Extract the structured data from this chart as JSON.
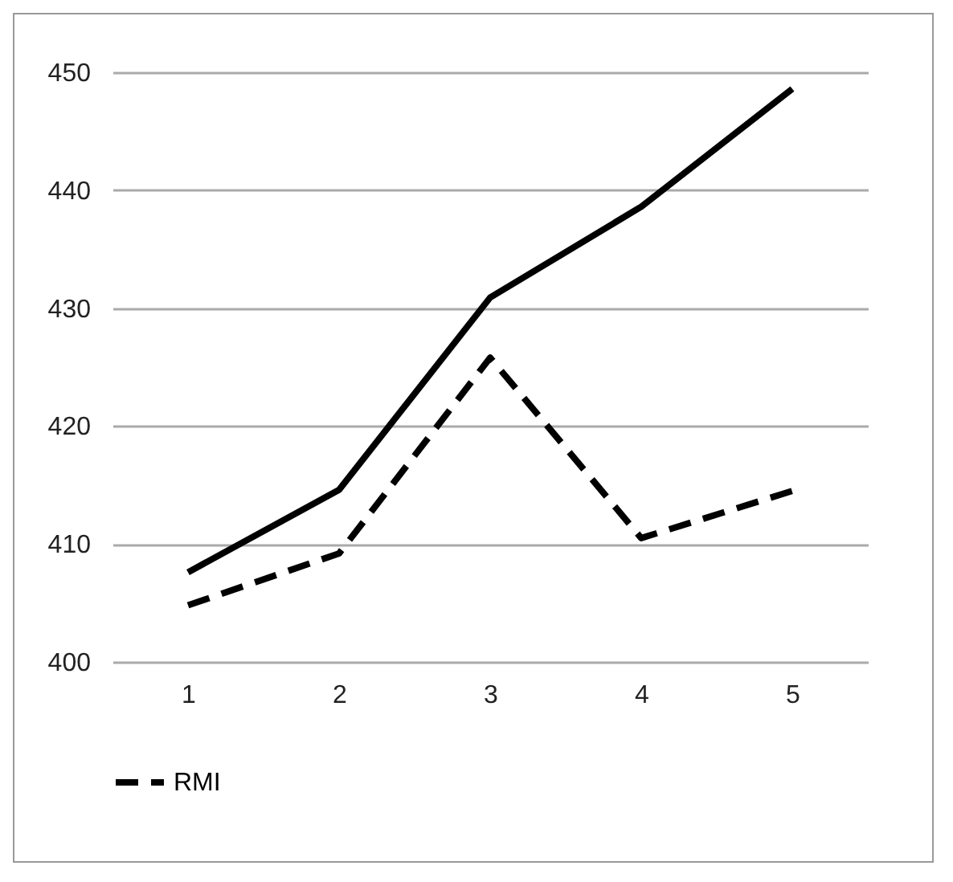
{
  "chart_data": {
    "type": "line",
    "categories": [
      "1",
      "2",
      "3",
      "4",
      "5"
    ],
    "series": [
      {
        "name": "RMI",
        "color": "#000000",
        "line_style": "dashed",
        "values": [
          404.8,
          409.2,
          425.8,
          410.5,
          414.5
        ]
      },
      {
        "color": "#000000",
        "line_style": "solid",
        "values": [
          407.6,
          414.6,
          430.9,
          438.6,
          448.6
        ]
      }
    ],
    "ylim": [
      400,
      450
    ],
    "yticks": [
      400,
      410,
      420,
      430,
      440,
      450
    ],
    "grid": "y",
    "legend": "bottom",
    "marker": "none"
  }
}
